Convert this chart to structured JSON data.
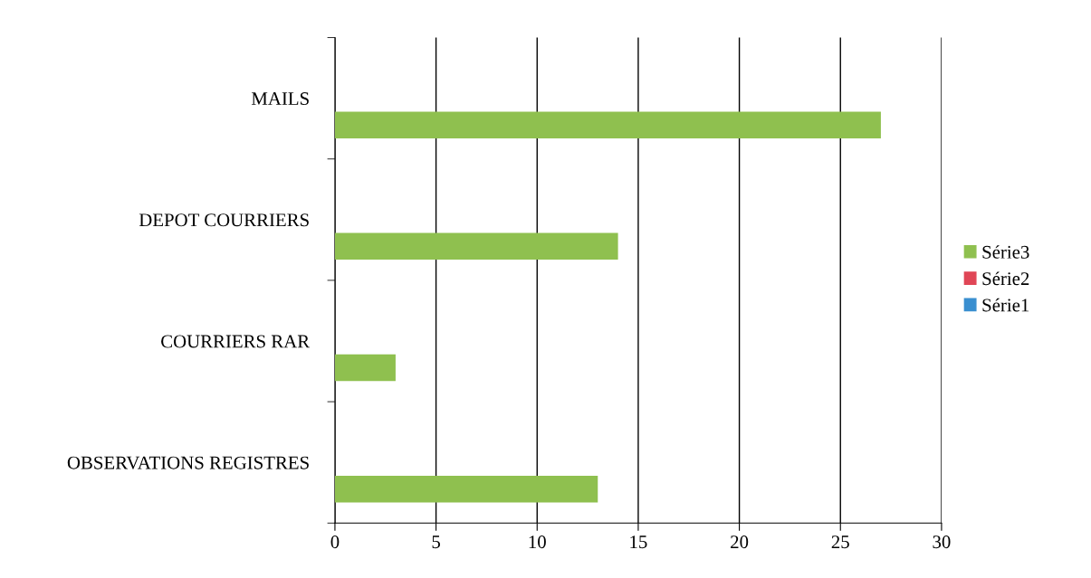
{
  "chart_data": {
    "type": "bar",
    "orientation": "horizontal",
    "categories": [
      "MAILS",
      "DEPOT COURRIERS",
      "COURRIERS RAR",
      "OBSERVATIONS REGISTRES"
    ],
    "series": [
      {
        "name": "Série1",
        "color": "#3a8fd0",
        "values": [
          null,
          null,
          null,
          null
        ]
      },
      {
        "name": "Série2",
        "color": "#e04656",
        "values": [
          null,
          null,
          null,
          null
        ]
      },
      {
        "name": "Série3",
        "color": "#8fc04f",
        "values": [
          27,
          14,
          3,
          13
        ]
      }
    ],
    "xlim": [
      0,
      30
    ],
    "xticks": [
      0,
      5,
      10,
      15,
      20,
      25,
      30
    ],
    "grid": "x",
    "legend": "right"
  }
}
